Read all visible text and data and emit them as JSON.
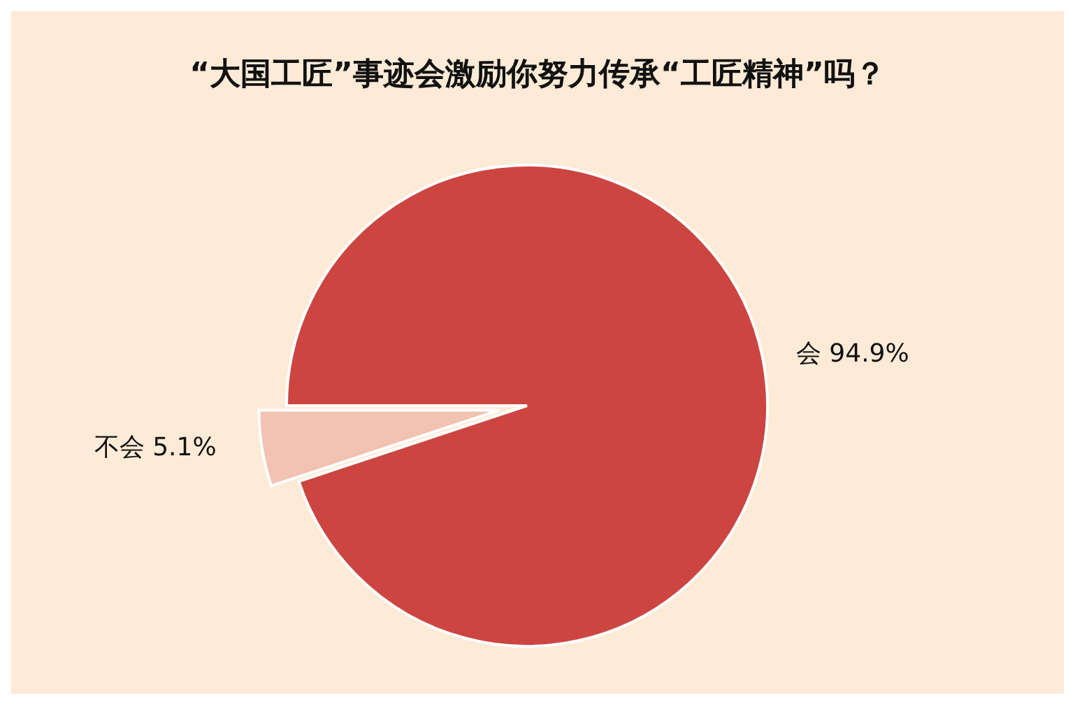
{
  "chart_data": {
    "type": "pie",
    "title": "“大国工匠”事迹会激励你努力传承“工匠精神”吗？",
    "categories": [
      "会",
      "不会"
    ],
    "values": [
      94.9,
      5.1
    ],
    "value_labels": [
      "94.9%",
      "5.1%"
    ],
    "colors": [
      "#cc4541",
      "#f2c2b3"
    ]
  }
}
